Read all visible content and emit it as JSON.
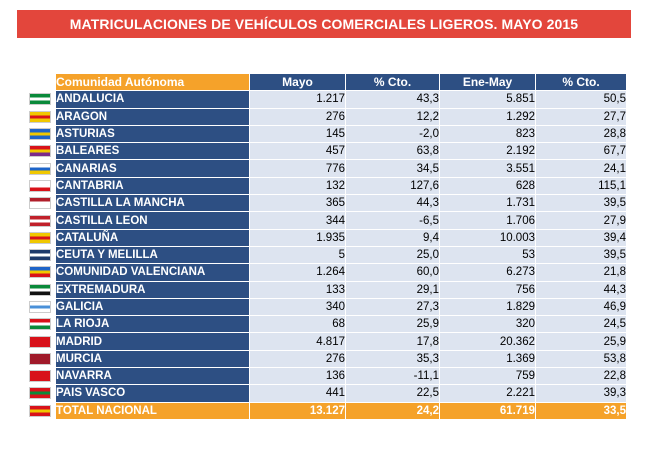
{
  "title": "MATRICULACIONES DE VEHÍCULOS COMERCIALES LIGEROS. MAYO 2015",
  "headers": [
    "Comunidad Autónoma",
    "Mayo",
    "% Cto.",
    "Ene-May",
    "% Cto."
  ],
  "rows": [
    {
      "name": "ANDALUCIA",
      "mayo": "1.217",
      "cto1": "43,3",
      "enemay": "5.851",
      "cto2": "50,5",
      "flag_colors": [
        "#0a8a3a",
        "#ffffff",
        "#0a8a3a"
      ]
    },
    {
      "name": "ARAGON",
      "mayo": "276",
      "cto1": "12,2",
      "enemay": "1.292",
      "cto2": "27,7",
      "flag_colors": [
        "#f0c800",
        "#d8121a",
        "#f0c800"
      ]
    },
    {
      "name": "ASTURIAS",
      "mayo": "145",
      "cto1": "-2,0",
      "enemay": "823",
      "cto2": "28,8",
      "flag_colors": [
        "#1e64c8",
        "#f0c800",
        "#1e64c8"
      ]
    },
    {
      "name": "BALEARES",
      "mayo": "457",
      "cto1": "63,8",
      "enemay": "2.192",
      "cto2": "67,7",
      "flag_colors": [
        "#d8121a",
        "#f0c800",
        "#7a2a8a"
      ]
    },
    {
      "name": "CANARIAS",
      "mayo": "776",
      "cto1": "34,5",
      "enemay": "3.551",
      "cto2": "24,1",
      "flag_colors": [
        "#ffffff",
        "#1e64c8",
        "#f0c800"
      ]
    },
    {
      "name": "CANTABRIA",
      "mayo": "132",
      "cto1": "127,6",
      "enemay": "628",
      "cto2": "115,1",
      "flag_colors": [
        "#ffffff",
        "#ffffff",
        "#d8121a"
      ]
    },
    {
      "name": "CASTILLA LA MANCHA",
      "mayo": "365",
      "cto1": "44,3",
      "enemay": "1.731",
      "cto2": "39,5",
      "flag_colors": [
        "#b01e2a",
        "#ffffff",
        "#ffffff"
      ]
    },
    {
      "name": "CASTILLA LEON",
      "mayo": "344",
      "cto1": "-6,5",
      "enemay": "1.706",
      "cto2": "27,9",
      "flag_colors": [
        "#c0202a",
        "#ffffff",
        "#c0202a"
      ]
    },
    {
      "name": "CATALUÑA",
      "mayo": "1.935",
      "cto1": "9,4",
      "enemay": "10.003",
      "cto2": "39,4",
      "flag_colors": [
        "#f0c800",
        "#d8121a",
        "#f0c800"
      ]
    },
    {
      "name": "CEUTA Y MELILLA",
      "mayo": "5",
      "cto1": "25,0",
      "enemay": "53",
      "cto2": "39,5",
      "flag_colors": [
        "#1e3a6a",
        "#ffffff",
        "#1e3a6a"
      ]
    },
    {
      "name": "COMUNIDAD VALENCIANA",
      "mayo": "1.264",
      "cto1": "60,0",
      "enemay": "6.273",
      "cto2": "21,8",
      "flag_colors": [
        "#1e64c8",
        "#f0c800",
        "#d8121a"
      ]
    },
    {
      "name": "EXTREMADURA",
      "mayo": "133",
      "cto1": "29,1",
      "enemay": "756",
      "cto2": "44,3",
      "flag_colors": [
        "#0a8a3a",
        "#ffffff",
        "#111111"
      ]
    },
    {
      "name": "GALICIA",
      "mayo": "340",
      "cto1": "27,3",
      "enemay": "1.829",
      "cto2": "46,9",
      "flag_colors": [
        "#ffffff",
        "#4a90d8",
        "#ffffff"
      ]
    },
    {
      "name": "LA RIOJA",
      "mayo": "68",
      "cto1": "25,9",
      "enemay": "320",
      "cto2": "24,5",
      "flag_colors": [
        "#d8121a",
        "#ffffff",
        "#0a8a3a"
      ]
    },
    {
      "name": "MADRID",
      "mayo": "4.817",
      "cto1": "17,8",
      "enemay": "20.362",
      "cto2": "25,9",
      "flag_colors": [
        "#d8121a",
        "#d8121a",
        "#d8121a"
      ]
    },
    {
      "name": "MURCIA",
      "mayo": "276",
      "cto1": "35,3",
      "enemay": "1.369",
      "cto2": "53,8",
      "flag_colors": [
        "#a01a2a",
        "#a01a2a",
        "#a01a2a"
      ]
    },
    {
      "name": "NAVARRA",
      "mayo": "136",
      "cto1": "-11,1",
      "enemay": "759",
      "cto2": "22,8",
      "flag_colors": [
        "#d8121a",
        "#d8121a",
        "#d8121a"
      ]
    },
    {
      "name": "PAIS VASCO",
      "mayo": "441",
      "cto1": "22,5",
      "enemay": "2.221",
      "cto2": "39,3",
      "flag_colors": [
        "#d8121a",
        "#0a8a3a",
        "#d8121a"
      ]
    }
  ],
  "total": {
    "name": "TOTAL NACIONAL",
    "mayo": "13.127",
    "cto1": "24,2",
    "enemay": "61.719",
    "cto2": "33,5",
    "flag_colors": [
      "#d8121a",
      "#f0c800",
      "#d8121a"
    ]
  },
  "colors": {
    "title_bg": "#e3463c",
    "header_blue": "#2d4f83",
    "header_orange": "#f5a22a",
    "cell_bg": "#dde4f0"
  }
}
